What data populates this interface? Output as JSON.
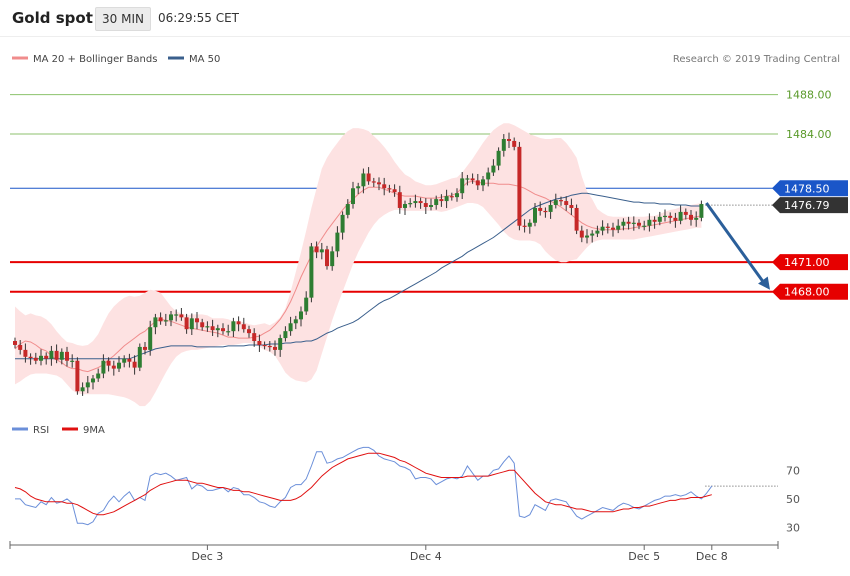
{
  "header": {
    "title": "Gold spot",
    "interval": "30 MIN",
    "time": "06:29:55 CET"
  },
  "legend": {
    "bb": {
      "label": "MA 20 + Bollinger Bands",
      "color": "#f08c8c"
    },
    "ma50": {
      "label": "MA 50",
      "color": "#3a5f8c"
    },
    "source": "Research © 2019 Trading Central"
  },
  "rsi_legend": {
    "rsi": {
      "label": "RSI",
      "color": "#6b8fd9"
    },
    "ma9": {
      "label": "9MA",
      "color": "#e01010"
    }
  },
  "colors": {
    "up": "#2e7d32",
    "down": "#c62828",
    "resistance": "#8cc26c",
    "support": "#e60000",
    "pivot": "#1a56c8",
    "arrow": "#2b5f9a"
  },
  "chart_data": [
    {
      "type": "candlestick",
      "ylim": [
        1456.0,
        1490.5
      ],
      "yticks": [
        {
          "value": 1488.0,
          "label": "1488.00"
        },
        {
          "value": 1484.0,
          "label": "1484.00"
        }
      ],
      "xticks": [
        {
          "index": 37,
          "label": "Dec 3"
        },
        {
          "index": 79,
          "label": "Dec 4"
        },
        {
          "index": 121,
          "label": "Dec 5"
        },
        {
          "index": 134,
          "label": "Dec 8"
        }
      ],
      "levels": [
        {
          "value": 1488.0,
          "label": "1488.00",
          "kind": "resistance"
        },
        {
          "value": 1484.0,
          "label": "1484.00",
          "kind": "resistance"
        },
        {
          "value": 1478.5,
          "label": "1478.50",
          "kind": "pivot"
        },
        {
          "value": 1471.0,
          "label": "1471.00",
          "kind": "support"
        },
        {
          "value": 1468.0,
          "label": "1468.00",
          "kind": "support"
        }
      ],
      "last_price": {
        "value": 1476.79,
        "label": "1476.79"
      },
      "forecast_arrow": {
        "from": 1477.0,
        "to": 1468.0
      },
      "close": [
        1462.6,
        1462.1,
        1461.4,
        1461.3,
        1461.0,
        1461.5,
        1461.2,
        1462.0,
        1461.1,
        1461.9,
        1461.0,
        1461.0,
        1457.9,
        1458.3,
        1458.8,
        1459.2,
        1459.7,
        1461.0,
        1460.5,
        1460.2,
        1460.8,
        1461.2,
        1460.9,
        1460.3,
        1462.4,
        1462.1,
        1464.4,
        1465.4,
        1465.0,
        1465.1,
        1465.7,
        1465.7,
        1465.4,
        1464.2,
        1465.3,
        1464.9,
        1464.4,
        1464.5,
        1464.1,
        1464.3,
        1464.0,
        1464.0,
        1465.0,
        1464.7,
        1464.2,
        1463.8,
        1463.0,
        1462.6,
        1462.5,
        1462.4,
        1462.1,
        1463.3,
        1464.0,
        1464.8,
        1465.2,
        1466.0,
        1467.4,
        1472.6,
        1472.0,
        1472.3,
        1470.6,
        1472.1,
        1474.0,
        1475.8,
        1476.9,
        1478.5,
        1478.7,
        1480.0,
        1479.2,
        1479.1,
        1478.9,
        1478.5,
        1478.4,
        1478.1,
        1476.5,
        1476.9,
        1477.0,
        1477.2,
        1477.0,
        1476.6,
        1476.8,
        1477.4,
        1477.2,
        1477.7,
        1477.6,
        1478.0,
        1479.5,
        1479.5,
        1479.3,
        1478.8,
        1479.4,
        1480.1,
        1480.8,
        1482.3,
        1483.5,
        1483.3,
        1482.7,
        1474.7,
        1474.6,
        1475.0,
        1476.5,
        1476.2,
        1476.1,
        1476.8,
        1477.3,
        1477.2,
        1476.8,
        1476.5,
        1474.2,
        1473.5,
        1473.7,
        1473.9,
        1474.2,
        1474.6,
        1474.5,
        1474.3,
        1474.7,
        1475.1,
        1474.9,
        1475.0,
        1474.7,
        1474.7,
        1475.3,
        1475.1,
        1475.6,
        1475.7,
        1475.5,
        1475.2,
        1476.1,
        1475.8,
        1475.3,
        1475.5,
        1476.9
      ],
      "bollinger_mid": [
        1462.2,
        1462.7,
        1463.0,
        1462.9,
        1462.6,
        1462.2,
        1462.0,
        1461.5,
        1461.1,
        1460.8,
        1460.4,
        1460.2,
        1460.2,
        1460.0,
        1459.9,
        1460.1,
        1460.3,
        1460.6,
        1461.1,
        1461.5,
        1462.0,
        1462.5,
        1462.9,
        1463.3,
        1463.7,
        1464.0,
        1464.5,
        1465.0,
        1465.2,
        1465.1,
        1465.0,
        1464.8,
        1464.6,
        1464.4,
        1464.3,
        1464.2,
        1464.1,
        1464.0,
        1463.9,
        1463.8,
        1463.6,
        1463.4,
        1463.4,
        1463.3,
        1463.3,
        1463.3,
        1463.4,
        1463.5,
        1463.8,
        1464.1,
        1464.6,
        1465.2,
        1466.0,
        1467.0,
        1468.2,
        1469.5,
        1470.6,
        1471.7,
        1472.6,
        1473.4,
        1474.2,
        1474.9,
        1475.6,
        1476.3,
        1476.9,
        1477.4,
        1477.9,
        1478.3,
        1478.6,
        1478.6,
        1478.6,
        1478.4,
        1478.2,
        1478.0,
        1477.8,
        1477.7,
        1477.7,
        1477.7,
        1477.6,
        1477.5,
        1477.5,
        1477.5,
        1477.6,
        1477.7,
        1477.8,
        1478.0,
        1478.6,
        1479.1,
        1479.2,
        1479.1,
        1479.0,
        1479.0,
        1479.0,
        1478.9,
        1478.9,
        1478.9,
        1478.8,
        1478.7,
        1478.5,
        1478.2,
        1477.9,
        1477.7,
        1477.5,
        1477.2,
        1476.9,
        1476.6,
        1476.2,
        1475.8,
        1475.4,
        1475.0,
        1474.7,
        1474.5,
        1474.4,
        1474.3,
        1474.3,
        1474.3,
        1474.3,
        1474.4,
        1474.4,
        1474.5,
        1474.6,
        1474.6,
        1474.7,
        1474.8,
        1474.9,
        1475.0,
        1475.1,
        1475.2,
        1475.3,
        1475.4,
        1475.5,
        1475.6,
        1475.7
      ],
      "bollinger_upper": [
        1466.5,
        1466.0,
        1465.6,
        1465.8,
        1465.6,
        1465.5,
        1465.2,
        1464.7,
        1464.0,
        1463.4,
        1462.9,
        1462.8,
        1462.6,
        1462.5,
        1462.6,
        1463.0,
        1463.7,
        1464.8,
        1465.8,
        1466.5,
        1467.0,
        1467.4,
        1467.6,
        1467.5,
        1467.6,
        1467.9,
        1468.2,
        1468.1,
        1467.9,
        1467.2,
        1466.5,
        1466.0,
        1465.8,
        1465.6,
        1465.7,
        1465.7,
        1465.7,
        1465.6,
        1465.3,
        1465.3,
        1465.3,
        1465.2,
        1465.0,
        1465.0,
        1464.9,
        1464.7,
        1464.6,
        1464.7,
        1464.8,
        1464.6,
        1464.9,
        1465.4,
        1466.3,
        1468.0,
        1470.0,
        1472.0,
        1474.2,
        1476.5,
        1478.5,
        1480.5,
        1481.6,
        1482.4,
        1483.1,
        1483.8,
        1484.3,
        1484.6,
        1484.6,
        1484.5,
        1484.3,
        1483.8,
        1483.3,
        1482.7,
        1482.0,
        1481.2,
        1480.5,
        1479.9,
        1479.6,
        1479.2,
        1479.0,
        1478.8,
        1478.8,
        1478.9,
        1479.1,
        1479.3,
        1479.5,
        1479.6,
        1480.1,
        1480.8,
        1481.5,
        1482.3,
        1483.1,
        1483.8,
        1484.4,
        1484.8,
        1485.1,
        1485.1,
        1484.9,
        1484.6,
        1484.3,
        1484.0,
        1483.8,
        1483.6,
        1483.5,
        1483.5,
        1483.6,
        1483.6,
        1483.1,
        1482.4,
        1481.6,
        1479.7,
        1478.2,
        1477.4,
        1476.4,
        1476.0,
        1475.7,
        1475.6,
        1475.6,
        1475.6,
        1475.6,
        1475.6,
        1475.6,
        1475.6,
        1475.7,
        1475.7,
        1475.9,
        1476.1,
        1476.3,
        1476.4,
        1476.6,
        1476.7,
        1476.8,
        1476.9,
        1477.0
      ],
      "bollinger_lower": [
        1458.6,
        1458.9,
        1459.3,
        1459.6,
        1459.7,
        1459.7,
        1459.7,
        1459.6,
        1459.5,
        1459.2,
        1458.6,
        1458.0,
        1457.7,
        1457.6,
        1457.6,
        1457.6,
        1457.6,
        1457.6,
        1457.6,
        1457.5,
        1457.4,
        1457.3,
        1457.1,
        1456.8,
        1456.4,
        1456.4,
        1456.9,
        1457.8,
        1458.8,
        1459.8,
        1460.7,
        1461.4,
        1461.8,
        1462.0,
        1462.1,
        1462.1,
        1462.2,
        1462.3,
        1462.4,
        1462.5,
        1462.6,
        1462.6,
        1462.6,
        1462.7,
        1462.8,
        1462.8,
        1462.7,
        1462.4,
        1462.1,
        1461.9,
        1461.5,
        1460.7,
        1459.8,
        1459.3,
        1459.0,
        1458.9,
        1458.8,
        1459.1,
        1460.0,
        1461.7,
        1463.4,
        1465.1,
        1466.6,
        1468.0,
        1469.4,
        1470.8,
        1472.0,
        1473.0,
        1474.0,
        1474.8,
        1475.4,
        1475.8,
        1476.1,
        1476.3,
        1476.3,
        1476.2,
        1476.2,
        1476.2,
        1476.2,
        1476.2,
        1476.2,
        1476.2,
        1476.1,
        1476.2,
        1476.4,
        1476.6,
        1476.8,
        1477.0,
        1477.0,
        1476.9,
        1476.6,
        1476.0,
        1475.4,
        1474.8,
        1474.1,
        1473.6,
        1473.3,
        1473.2,
        1473.2,
        1473.2,
        1473.1,
        1472.8,
        1472.1,
        1471.6,
        1471.2,
        1471.0,
        1471.0,
        1471.2,
        1471.3,
        1471.9,
        1472.5,
        1473.0,
        1473.2,
        1473.3,
        1473.3,
        1473.3,
        1473.3,
        1473.3,
        1473.3,
        1473.3,
        1473.4,
        1473.5,
        1473.6,
        1473.7,
        1473.8,
        1473.9,
        1474.0,
        1474.1,
        1474.2,
        1474.3,
        1474.4,
        1474.5,
        1474.5
      ],
      "ma50": [
        1461.2,
        1461.2,
        1461.2,
        1461.2,
        1461.2,
        1461.2,
        1461.2,
        1461.2,
        1461.2,
        1461.2,
        1461.2,
        1461.2,
        1461.2,
        1461.2,
        1461.2,
        1461.2,
        1461.2,
        1461.2,
        1461.2,
        1461.2,
        1461.2,
        1461.2,
        1461.2,
        1461.4,
        1461.6,
        1461.8,
        1462.0,
        1462.2,
        1462.3,
        1462.4,
        1462.5,
        1462.5,
        1462.5,
        1462.5,
        1462.5,
        1462.4,
        1462.4,
        1462.4,
        1462.4,
        1462.4,
        1462.4,
        1462.5,
        1462.5,
        1462.5,
        1462.5,
        1462.6,
        1462.6,
        1462.6,
        1462.6,
        1462.7,
        1462.7,
        1462.7,
        1462.8,
        1462.8,
        1462.9,
        1462.9,
        1463.0,
        1463.0,
        1463.2,
        1463.5,
        1463.8,
        1464.0,
        1464.3,
        1464.5,
        1464.7,
        1464.9,
        1465.2,
        1465.6,
        1466.0,
        1466.4,
        1466.8,
        1467.1,
        1467.3,
        1467.6,
        1467.9,
        1468.2,
        1468.5,
        1468.8,
        1469.1,
        1469.4,
        1469.7,
        1470.0,
        1470.4,
        1470.7,
        1471.0,
        1471.3,
        1471.6,
        1472.0,
        1472.3,
        1472.6,
        1472.9,
        1473.2,
        1473.5,
        1473.9,
        1474.3,
        1474.7,
        1475.1,
        1475.5,
        1475.9,
        1476.3,
        1476.6,
        1476.8,
        1477.0,
        1477.2,
        1477.4,
        1477.5,
        1477.6,
        1477.8,
        1477.9,
        1478.0,
        1478.0,
        1477.9,
        1477.8,
        1477.7,
        1477.6,
        1477.5,
        1477.4,
        1477.3,
        1477.2,
        1477.1,
        1477.1,
        1477.0,
        1477.0,
        1477.0,
        1476.9,
        1476.9,
        1476.9,
        1476.8,
        1476.8,
        1476.8,
        1476.7,
        1476.7,
        1476.7
      ]
    },
    {
      "type": "line",
      "ylim": [
        22.0,
        94.0
      ],
      "yticks": [
        {
          "value": 70,
          "label": "70"
        },
        {
          "value": 50,
          "label": "50"
        },
        {
          "value": 30,
          "label": "30"
        }
      ],
      "last_value_level": 59,
      "series": [
        {
          "name": "RSI",
          "values": [
            50,
            50,
            46,
            45,
            44,
            48,
            46,
            51,
            47,
            48,
            50,
            47,
            33,
            33,
            32,
            34,
            40,
            42,
            48,
            52,
            48,
            52,
            55,
            49,
            51,
            49,
            66,
            68,
            67,
            68,
            66,
            63,
            64,
            65,
            57,
            60,
            59,
            56,
            56,
            57,
            58,
            55,
            58,
            57,
            53,
            53,
            51,
            48,
            47,
            45,
            44,
            48,
            51,
            58,
            60,
            60,
            64,
            73,
            83,
            83,
            75,
            76,
            78,
            79,
            81,
            83,
            85,
            86,
            86,
            84,
            80,
            78,
            77,
            76,
            73,
            72,
            70,
            64,
            65,
            65,
            64,
            60,
            62,
            64,
            65,
            64,
            66,
            73,
            68,
            63,
            66,
            66,
            70,
            71,
            76,
            80,
            75,
            38,
            37,
            39,
            46,
            44,
            42,
            49,
            50,
            49,
            48,
            43,
            38,
            36,
            38,
            40,
            42,
            44,
            43,
            42,
            45,
            47,
            46,
            44,
            43,
            45,
            47,
            49,
            50,
            52,
            52,
            53,
            52,
            53,
            55,
            52,
            50,
            54,
            59
          ]
        },
        {
          "name": "9MA",
          "values": [
            58,
            57,
            55,
            52,
            50,
            49,
            48,
            48,
            48,
            48,
            47,
            47,
            46,
            44,
            42,
            40,
            39,
            39,
            40,
            41,
            43,
            45,
            47,
            49,
            51,
            53,
            56,
            58,
            60,
            61,
            62,
            63,
            63,
            63,
            62,
            61,
            61,
            60,
            59,
            58,
            58,
            57,
            56,
            56,
            55,
            55,
            54,
            53,
            52,
            51,
            50,
            49,
            49,
            49,
            50,
            52,
            55,
            58,
            62,
            66,
            69,
            72,
            74,
            76,
            78,
            79,
            80,
            81,
            82,
            82,
            82,
            81,
            80,
            79,
            77,
            76,
            74,
            72,
            70,
            68,
            67,
            66,
            65,
            65,
            65,
            65,
            65,
            66,
            66,
            66,
            66,
            66,
            67,
            68,
            69,
            70,
            70,
            66,
            62,
            58,
            54,
            51,
            48,
            47,
            46,
            46,
            45,
            44,
            43,
            43,
            42,
            41,
            41,
            41,
            41,
            41,
            42,
            43,
            43,
            44,
            44,
            45,
            45,
            46,
            47,
            48,
            49,
            49,
            50,
            50,
            51,
            51,
            51,
            52,
            53
          ]
        }
      ]
    }
  ]
}
